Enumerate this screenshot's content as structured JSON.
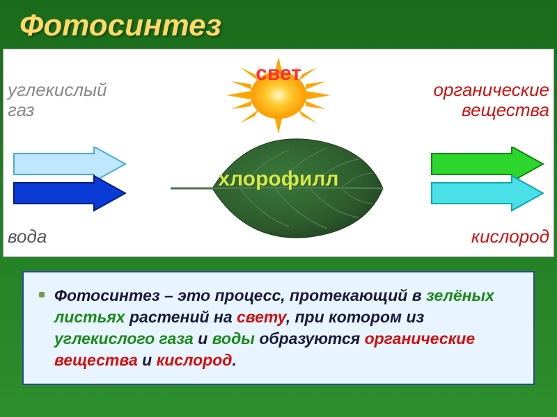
{
  "title": "Фотосинтез",
  "diagram": {
    "sun_label": "свет",
    "leaf_label": "хлорофилл",
    "inputs": {
      "co2": {
        "line1": "углекислый",
        "line2": "газ",
        "color": "#888888",
        "arrow_color": "#bfe8ff",
        "arrow_border": "#4aa8e0"
      },
      "water": {
        "label": "вода",
        "color": "#555555",
        "arrow_color": "#0b3bd6",
        "arrow_border": "#052080"
      }
    },
    "outputs": {
      "organic": {
        "line1": "органические",
        "line2": "вещества",
        "color": "#d01010",
        "arrow_color": "#2dd62d",
        "arrow_border": "#0a8a0a"
      },
      "oxygen": {
        "label": "кислород",
        "color": "#d01010",
        "arrow_color": "#4ae0e8",
        "arrow_border": "#0aa8b0"
      }
    },
    "sun_colors": {
      "core": "#ffcc33",
      "glow": "#ffa500",
      "rays": "#ff9900"
    },
    "leaf_colors": {
      "fill": "#2d5a2d",
      "vein": "#507a50",
      "highlight": "#3a7a3a"
    },
    "background": "#ffffff"
  },
  "definition": {
    "parts": [
      {
        "t": "Фотосинтез – это процесс, протекающий в ",
        "c": "default"
      },
      {
        "t": "зелёных листьях",
        "c": "green"
      },
      {
        "t": " растений на ",
        "c": "default"
      },
      {
        "t": "свету",
        "c": "red"
      },
      {
        "t": ", при котором из ",
        "c": "default"
      },
      {
        "t": "углекислого газа",
        "c": "green"
      },
      {
        "t": " и ",
        "c": "default"
      },
      {
        "t": "воды",
        "c": "green"
      },
      {
        "t": " образуются ",
        "c": "default"
      },
      {
        "t": "органические вещества",
        "c": "red"
      },
      {
        "t": " и ",
        "c": "default"
      },
      {
        "t": "кислород",
        "c": "red"
      },
      {
        "t": ".",
        "c": "default"
      }
    ],
    "panel_bg": "#e8f4ff",
    "panel_border": "#2a4a8a",
    "bullet_color": "#7a9a4a"
  },
  "slide_bg_gradient": [
    "#1a6b1a",
    "#2d8f2d"
  ],
  "title_color": "#ffd966"
}
